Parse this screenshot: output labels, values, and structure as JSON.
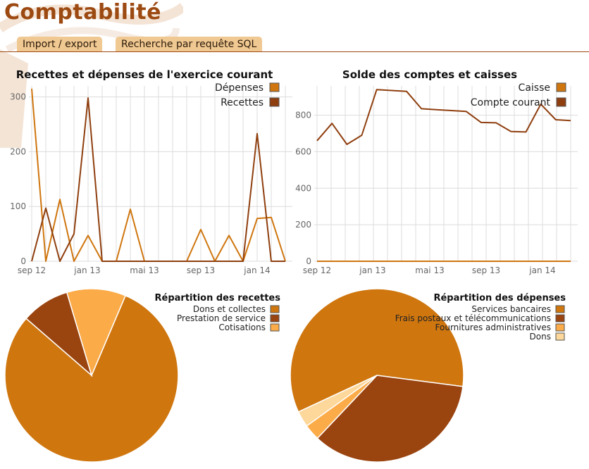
{
  "page": {
    "title": "Comptabilité"
  },
  "tabs": [
    {
      "label": "Import / export"
    },
    {
      "label": "Recherche par requête SQL"
    }
  ],
  "colors": {
    "accent": "#9c4a12",
    "tab_bg": "#f0c892"
  },
  "chart_data": [
    {
      "type": "line",
      "title": "Recettes et dépenses de l'exercice courant",
      "xlabels": [
        "sep 12",
        "jan 13",
        "mai 13",
        "sep 13",
        "jan 14"
      ],
      "yticks": [
        0,
        100,
        200,
        300
      ],
      "ylim": [
        0,
        320
      ],
      "grid": true,
      "legend_placement": "top-right",
      "series": [
        {
          "name": "Dépenses",
          "color": "#cf760f",
          "values": [
            315,
            0,
            113,
            0,
            47,
            0,
            0,
            95,
            0,
            0,
            0,
            0,
            58,
            0,
            47,
            0,
            78,
            80,
            0
          ]
        },
        {
          "name": "Recettes",
          "color": "#8f3f0f",
          "values": [
            0,
            97,
            0,
            50,
            298,
            0,
            0,
            0,
            0,
            0,
            0,
            0,
            0,
            0,
            0,
            0,
            233,
            0,
            0
          ]
        }
      ]
    },
    {
      "type": "line",
      "title": "Solde des comptes et caisses",
      "xlabels": [
        "sep 12",
        "jan 13",
        "mai 13",
        "sep 13",
        "jan 14"
      ],
      "yticks": [
        0,
        200,
        400,
        600,
        800
      ],
      "ylim": [
        0,
        960
      ],
      "grid": true,
      "legend_placement": "top-right",
      "series": [
        {
          "name": "Caisse",
          "color": "#cf760f",
          "values": [
            0,
            0,
            0,
            0,
            0,
            0,
            0,
            0,
            0,
            0,
            0,
            0,
            0,
            0,
            0,
            0,
            0,
            0,
            0
          ]
        },
        {
          "name": "Compte courant",
          "color": "#8f3f0f",
          "values": [
            660,
            755,
            640,
            690,
            940,
            935,
            930,
            835,
            830,
            825,
            820,
            760,
            758,
            710,
            708,
            860,
            775,
            770
          ]
        }
      ]
    },
    {
      "type": "pie",
      "title": "Répartition des recettes",
      "legend_placement": "top-right",
      "slices": [
        {
          "label": "Dons et collectes",
          "value": 0.8,
          "color": "#cf760f"
        },
        {
          "label": "Prestation de service",
          "value": 0.09,
          "color": "#9a4410"
        },
        {
          "label": "Cotisations",
          "value": 0.11,
          "color": "#fbab48"
        }
      ]
    },
    {
      "type": "pie",
      "title": "Répartition des dépenses",
      "legend_placement": "top-right",
      "slices": [
        {
          "label": "Services bancaires",
          "value": 0.59,
          "color": "#cf760f"
        },
        {
          "label": "Frais postaux et télécommunications",
          "value": 0.35,
          "color": "#9a4410"
        },
        {
          "label": "Fournitures administratives",
          "value": 0.03,
          "color": "#fbab48"
        },
        {
          "label": "Dons",
          "value": 0.03,
          "color": "#fed79a"
        }
      ]
    }
  ]
}
